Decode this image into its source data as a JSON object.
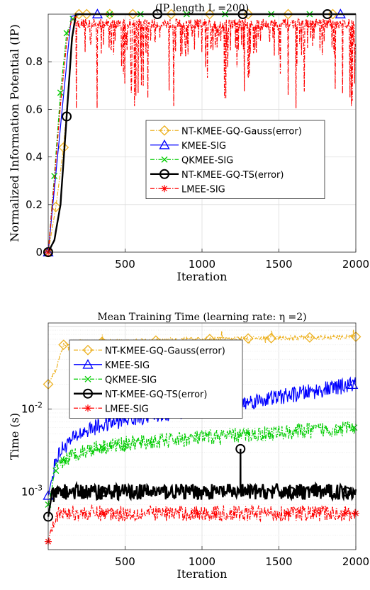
{
  "chart_data": [
    {
      "type": "line",
      "title": "(IP length L =200)",
      "xlabel": "Iteration",
      "ylabel": "Normalized Information Potential (IP)",
      "xlim": [
        0,
        2000
      ],
      "ylim": [
        0,
        1
      ],
      "xticks": [
        500,
        1000,
        1500,
        2000
      ],
      "yticks": [
        0,
        0.2,
        0.4,
        0.6,
        0.8
      ],
      "xtick_labels": [
        "500",
        "1000",
        "1500",
        "2000"
      ],
      "ytick_labels": [
        "0",
        "0.2",
        "0.4",
        "0.6",
        "0.8"
      ],
      "yscale": "linear",
      "grid": true,
      "legend_position": "center-right",
      "series": [
        {
          "name": "NT-KMEE-GQ-Gauss(error)",
          "color": "#EDB120",
          "style": "dashdot",
          "marker": "diamond",
          "x": [
            0,
            50,
            100,
            150,
            175,
            200,
            2000
          ],
          "y": [
            0,
            0.19,
            0.44,
            0.85,
            0.98,
            1,
            1
          ],
          "markers_x": [
            0,
            50,
            100,
            200,
            250,
            400,
            550,
            800,
            1050,
            1300,
            1560,
            1850
          ]
        },
        {
          "name": "KMEE-SIG",
          "color": "#0000FF",
          "style": "solid",
          "marker": "triangle",
          "x": [
            0,
            150,
            200,
            2000
          ],
          "y": [
            0,
            0.99,
            1,
            1
          ],
          "markers_x": [
            0,
            320,
            1900
          ]
        },
        {
          "name": "QKMEE-SIG",
          "color": "#00CC00",
          "style": "dashdot",
          "marker": "x",
          "x": [
            0,
            40,
            80,
            120,
            160,
            200,
            2000
          ],
          "y": [
            0,
            0.32,
            0.67,
            0.92,
            0.98,
            1,
            1
          ],
          "markers_x": [
            0,
            40,
            80,
            120,
            160,
            400,
            600,
            900,
            1150,
            1450,
            1700
          ]
        },
        {
          "name": "NT-KMEE-GQ-TS(error)",
          "color": "#000000",
          "style": "solid",
          "marker": "circle",
          "x": [
            0,
            40,
            80,
            120,
            155,
            180,
            2000
          ],
          "y": [
            0,
            0.05,
            0.2,
            0.57,
            0.9,
            1,
            1
          ],
          "markers_x": [
            0,
            120,
            710,
            1265,
            1815
          ]
        },
        {
          "name": "LMEE-SIG",
          "color": "#FF0000",
          "style": "dashdot",
          "marker": "asterisk",
          "x": [
            0,
            40,
            80,
            120,
            150,
            180
          ],
          "y": [
            0,
            0.3,
            0.62,
            0.88,
            0.97,
            0.99
          ],
          "noise_from": 180,
          "noise_base": 0.96,
          "noise_floor": 0.6,
          "markers_x": [
            0
          ]
        }
      ]
    },
    {
      "type": "line",
      "title": "Mean Training Time (learning rate: η =2)",
      "xlabel": "Iteration",
      "ylabel": "Time (s)",
      "xlim": [
        0,
        2000
      ],
      "ylim": [
        0.0002,
        0.11
      ],
      "yscale": "log",
      "xticks": [
        500,
        1000,
        1500,
        2000
      ],
      "yticks": [
        0.001,
        0.01
      ],
      "xtick_labels": [
        "500",
        "1000",
        "1500",
        "2000"
      ],
      "ytick_labels": [
        "10-3",
        "10-2"
      ],
      "grid": true,
      "legend_position": "top-left",
      "series": [
        {
          "name": "NT-KMEE-GQ-Gauss(error)",
          "color": "#EDB120",
          "style": "dashdot",
          "marker": "diamond",
          "x": [
            0,
            50,
            100,
            200,
            400,
            1000,
            2000
          ],
          "y": [
            0.02,
            0.03,
            0.06,
            0.065,
            0.065,
            0.07,
            0.075
          ],
          "markers_x": [
            0,
            100,
            350,
            700,
            1050,
            1300,
            1450,
            1700,
            2000
          ]
        },
        {
          "name": "KMEE-SIG",
          "color": "#0000FF",
          "style": "solid",
          "marker": "triangle",
          "x": [
            0,
            50,
            100,
            200,
            300,
            500,
            1000,
            1500,
            2000
          ],
          "y": [
            0.0009,
            0.0025,
            0.0035,
            0.005,
            0.006,
            0.0075,
            0.01,
            0.014,
            0.02
          ],
          "markers_x": [
            0,
            1250,
            1980
          ]
        },
        {
          "name": "QKMEE-SIG",
          "color": "#00CC00",
          "style": "dashdot",
          "marker": "x",
          "x": [
            0,
            50,
            100,
            200,
            300,
            500,
            1000,
            1500,
            2000
          ],
          "y": [
            0.0007,
            0.0018,
            0.0024,
            0.003,
            0.0034,
            0.0038,
            0.0045,
            0.0052,
            0.006
          ],
          "markers_x": [
            0,
            50,
            100,
            350,
            1900,
            1990
          ]
        },
        {
          "name": "NT-KMEE-GQ-TS(error)",
          "color": "#000000",
          "style": "solid",
          "marker": "circle",
          "x": [
            0,
            20,
            50,
            100,
            2000
          ],
          "y": [
            0.0005,
            0.00085,
            0.00095,
            0.001,
            0.001
          ],
          "spike": {
            "x": 1250,
            "y": 0.0033
          },
          "markers_x": [
            0,
            360,
            1250,
            1580,
            1940
          ]
        },
        {
          "name": "LMEE-SIG",
          "color": "#FF0000",
          "style": "dashdot",
          "marker": "asterisk",
          "x": [
            0,
            30,
            60,
            100,
            2000
          ],
          "y": [
            0.00025,
            0.00045,
            0.00052,
            0.00055,
            0.00055
          ],
          "markers_x": [
            0,
            360,
            970,
            1560,
            1930,
            2000
          ]
        }
      ]
    }
  ]
}
